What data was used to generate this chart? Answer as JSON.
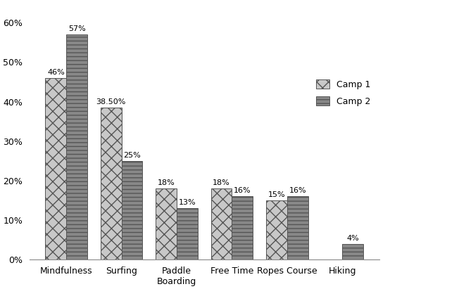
{
  "categories": [
    "Mindfulness",
    "Surfing",
    "Paddle\nBoarding",
    "Free Time",
    "Ropes Course",
    "Hiking"
  ],
  "camp1": [
    46,
    38.5,
    18,
    18,
    15,
    0
  ],
  "camp2": [
    57,
    25,
    13,
    16,
    16,
    4
  ],
  "camp1_labels": [
    "46%",
    "38.50%",
    "18%",
    "18%",
    "15%",
    ""
  ],
  "camp2_labels": [
    "57%",
    "25%",
    "13%",
    "16%",
    "16%",
    "4%"
  ],
  "ylim": [
    0,
    65
  ],
  "yticks": [
    0,
    10,
    20,
    30,
    40,
    50,
    60
  ],
  "ytick_labels": [
    "0%",
    "10%",
    "20%",
    "30%",
    "40%",
    "50%",
    "60%"
  ],
  "bar_width": 0.38,
  "camp1_hatch": "xx",
  "camp2_hatch": "---",
  "camp1_color": "#c8c8c8",
  "camp2_color": "#888888",
  "camp1_edge": "#555555",
  "camp2_edge": "#555555",
  "legend_labels": [
    "Camp 1",
    "Camp 2"
  ],
  "label_fontsize": 8,
  "tick_fontsize": 9,
  "legend_fontsize": 9,
  "figsize": [
    6.62,
    4.11
  ],
  "dpi": 100
}
